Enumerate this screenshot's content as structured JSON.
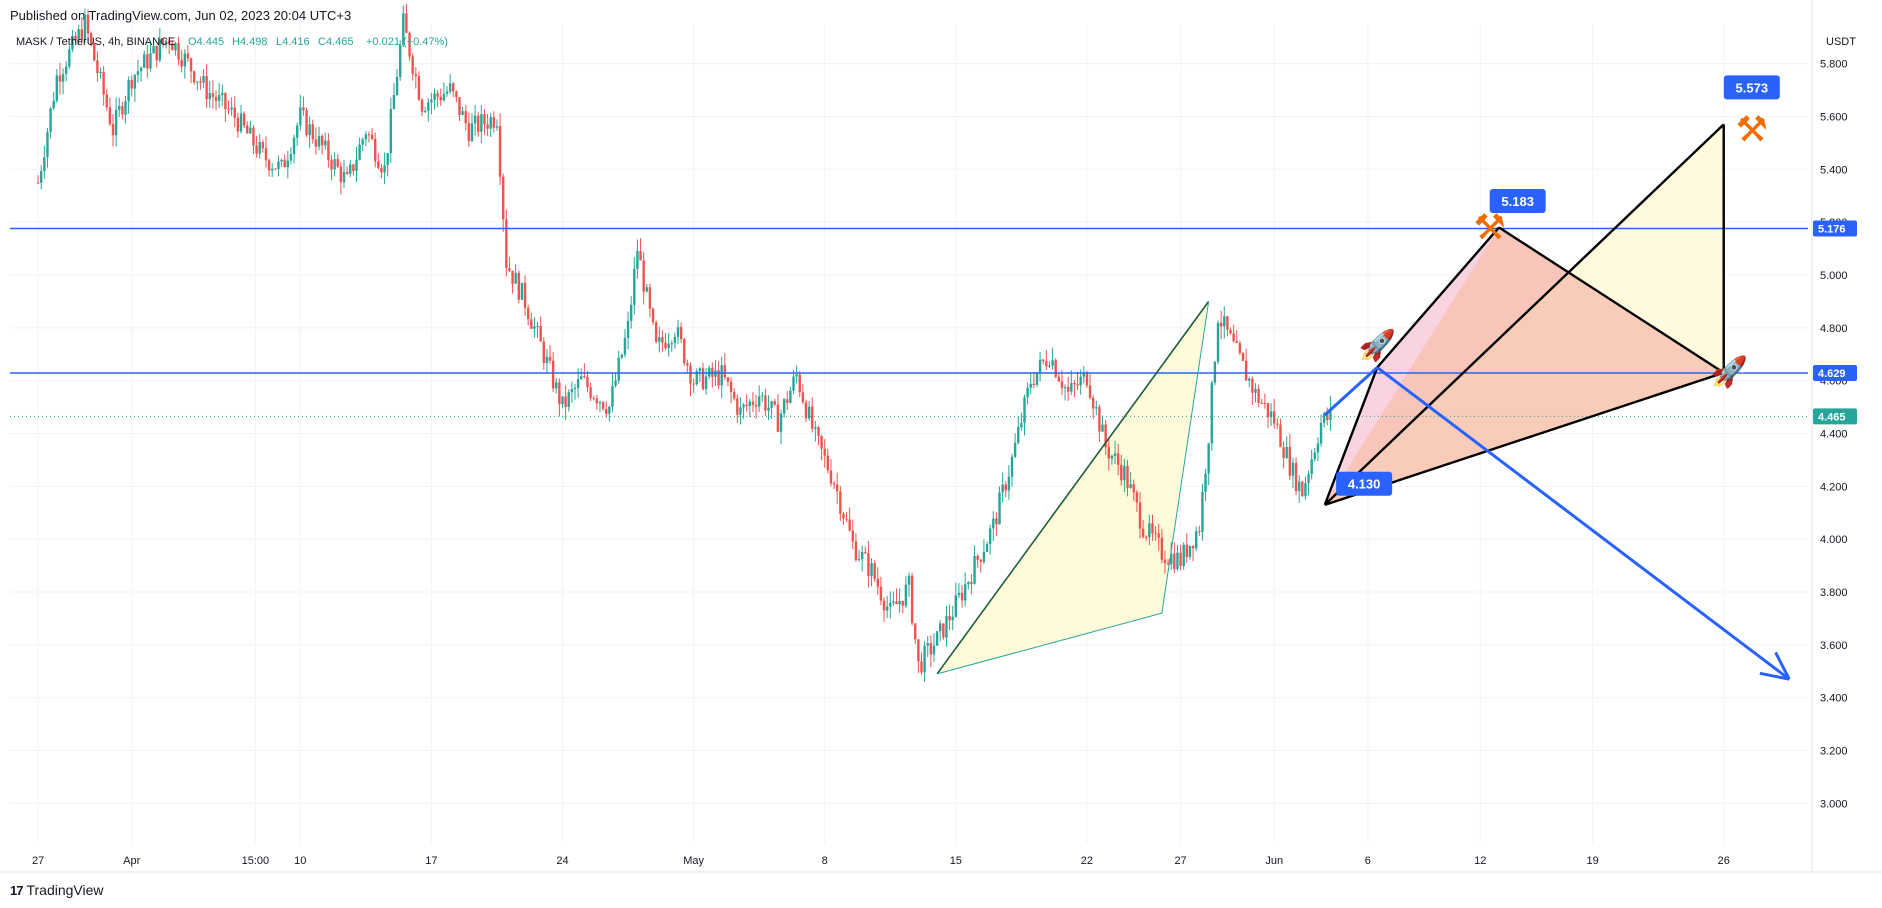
{
  "caption": "Published on TradingView.com, Jun 02, 2023 20:04 UTC+3",
  "brand": {
    "logo": "17",
    "name": "TradingView"
  },
  "colors": {
    "up": "#26a69a",
    "down": "#ef5350",
    "line_blue": "#2962ff",
    "grid": "#f0f3fa",
    "fill_yellow": "#fff9d6",
    "fill_pink": "#f8c8d8",
    "fill_salmon": "#f7c2b2",
    "dark_green": "#1e5c3a"
  },
  "chart_data": {
    "type": "candlestick",
    "symbol_line": {
      "pair": "MASK / TetherUS, 4h, BINANCE",
      "open": "O4.445",
      "high": "H4.498",
      "low": "L4.416",
      "close": "C4.465",
      "change": "+0.021 (+0.47%)"
    },
    "currency": "USDT",
    "ylim": [
      2.85,
      5.95
    ],
    "y_ticks": [
      "3.000",
      "3.200",
      "3.400",
      "3.600",
      "3.800",
      "4.000",
      "4.200",
      "4.400",
      "4.600",
      "4.800",
      "5.000",
      "5.200",
      "5.400",
      "5.600",
      "5.800"
    ],
    "x_ticks": [
      "27",
      "Apr",
      "15:00",
      "10",
      "17",
      "24",
      "May",
      "8",
      "15",
      "22",
      "27",
      "Jun",
      "6",
      "12",
      "19",
      "26"
    ],
    "x_tick_days": [
      0,
      5,
      11.6,
      14,
      21,
      28,
      35,
      42,
      49,
      56,
      61,
      66,
      71,
      77,
      83,
      90
    ],
    "x_range_days": [
      -1.5,
      94.5
    ],
    "price_path": [
      [
        0,
        5.35
      ],
      [
        1,
        5.75
      ],
      [
        2.5,
        5.95
      ],
      [
        4,
        5.55
      ],
      [
        5,
        5.75
      ],
      [
        7,
        5.9
      ],
      [
        8,
        5.8
      ],
      [
        9,
        5.7
      ],
      [
        10.5,
        5.6
      ],
      [
        12,
        5.45
      ],
      [
        13,
        5.4
      ],
      [
        14,
        5.6
      ],
      [
        15,
        5.5
      ],
      [
        16.5,
        5.35
      ],
      [
        17.5,
        5.55
      ],
      [
        18.5,
        5.4
      ],
      [
        19.5,
        5.95
      ],
      [
        20.5,
        5.65
      ],
      [
        22,
        5.7
      ],
      [
        23,
        5.55
      ],
      [
        24.5,
        5.6
      ],
      [
        25,
        5.05
      ],
      [
        26,
        4.9
      ],
      [
        27,
        4.7
      ],
      [
        28,
        4.5
      ],
      [
        29,
        4.6
      ],
      [
        30.5,
        4.5
      ],
      [
        31.5,
        4.8
      ],
      [
        32,
        5.1
      ],
      [
        33,
        4.72
      ],
      [
        34,
        4.8
      ],
      [
        35,
        4.6
      ],
      [
        36.5,
        4.62
      ],
      [
        37.5,
        4.48
      ],
      [
        38.5,
        4.55
      ],
      [
        39.5,
        4.45
      ],
      [
        40.5,
        4.62
      ],
      [
        41.5,
        4.38
      ],
      [
        42.5,
        4.22
      ],
      [
        43.5,
        3.98
      ],
      [
        44.5,
        3.88
      ],
      [
        45.5,
        3.72
      ],
      [
        46.5,
        3.82
      ],
      [
        47,
        3.52
      ],
      [
        48,
        3.62
      ],
      [
        49,
        3.75
      ],
      [
        50,
        3.9
      ],
      [
        51,
        4.05
      ],
      [
        52,
        4.3
      ],
      [
        53,
        4.6
      ],
      [
        54,
        4.7
      ],
      [
        55,
        4.55
      ],
      [
        56,
        4.62
      ],
      [
        57,
        4.35
      ],
      [
        58,
        4.25
      ],
      [
        59,
        4.05
      ],
      [
        60,
        3.95
      ],
      [
        61,
        3.92
      ],
      [
        62,
        4.05
      ],
      [
        62.5,
        4.4
      ],
      [
        63,
        4.85
      ],
      [
        64,
        4.7
      ],
      [
        65,
        4.55
      ],
      [
        66,
        4.45
      ],
      [
        67,
        4.25
      ],
      [
        67.5,
        4.18
      ],
      [
        68.5,
        4.44
      ],
      [
        69,
        4.465
      ]
    ],
    "horizontal_lines": [
      {
        "value": 5.176,
        "label": "5.176"
      },
      {
        "value": 4.629,
        "label": "4.629"
      }
    ],
    "last_price": {
      "value": 4.465,
      "label": "4.465"
    },
    "pattern_green": {
      "points": [
        [
          48,
          3.49
        ],
        [
          62.5,
          4.9
        ],
        [
          60,
          3.72
        ]
      ],
      "fill": "yellow"
    },
    "pattern_projection": {
      "A": {
        "day": 68.7,
        "price": 4.13
      },
      "B": {
        "day": 71.5,
        "price": 4.65
      },
      "C": {
        "day": 78,
        "price": 5.18
      },
      "D": {
        "day": 90,
        "price": 5.57
      },
      "E": {
        "day": 90,
        "price": 4.63
      }
    },
    "callouts": [
      {
        "label": "5.183",
        "day": 79,
        "price": 5.28
      },
      {
        "label": "5.573",
        "day": 91.5,
        "price": 5.71
      },
      {
        "label": "4.130",
        "day": 70.8,
        "price": 4.21
      }
    ],
    "arrow_up": {
      "from": [
        68.7,
        4.47
      ],
      "to": [
        71.5,
        4.65
      ]
    },
    "arrow_down": {
      "from": [
        71.5,
        4.65
      ],
      "to": [
        93.5,
        3.47
      ]
    },
    "icons": [
      {
        "name": "hammer-pick-icon",
        "glyph": "⚒",
        "day": 77.5,
        "price": 5.18
      },
      {
        "name": "hammer-pick-icon",
        "glyph": "⚒",
        "day": 91.5,
        "price": 5.55
      },
      {
        "name": "rocket-icon",
        "glyph": "🚀",
        "day": 71.5,
        "price": 4.74
      },
      {
        "name": "rocket-icon",
        "glyph": "🚀",
        "day": 90.3,
        "price": 4.64
      }
    ]
  }
}
